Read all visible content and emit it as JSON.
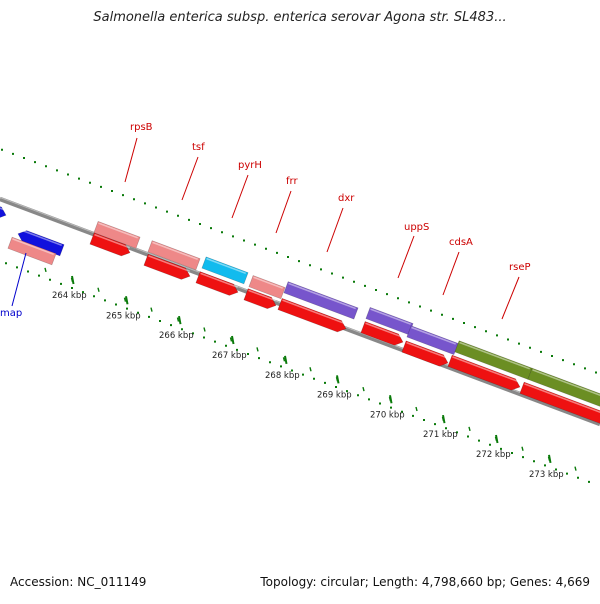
{
  "title": "Salmonella enterica subsp. enterica serovar Agona str. SL483...",
  "footer": {
    "accession": "Accession: NC_011149",
    "stats": "Topology: circular; Length: 4,798,660 bp; Genes: 4,669"
  },
  "colors": {
    "backbone": "#888888",
    "dots": "#0a7a0a",
    "gene_red": "#ee1111",
    "gene_pink": "#ee8888",
    "gene_blue": "#1111dd",
    "gene_cyan": "#11bbee",
    "gene_purple": "#7755cc",
    "gene_olive": "#6b8e23",
    "label_red": "#cc0000",
    "label_blue": "#0000cc",
    "kbp_text": "#222222"
  },
  "kbp_labels": [
    "264 kbp",
    "265 kbp",
    "266 kbp",
    "267 kbp",
    "268 kbp",
    "269 kbp",
    "270 kbp",
    "271 kbp",
    "272 kbp",
    "273 kbp"
  ],
  "gene_labels": [
    {
      "text": "rpsB",
      "color": "red"
    },
    {
      "text": "tsf",
      "color": "red"
    },
    {
      "text": "pyrH",
      "color": "red"
    },
    {
      "text": "frr",
      "color": "red"
    },
    {
      "text": "dxr",
      "color": "red"
    },
    {
      "text": "uppS",
      "color": "red"
    },
    {
      "text": "cdsA",
      "color": "red"
    },
    {
      "text": "rseP",
      "color": "red"
    },
    {
      "text": "map",
      "color": "blue"
    }
  ]
}
